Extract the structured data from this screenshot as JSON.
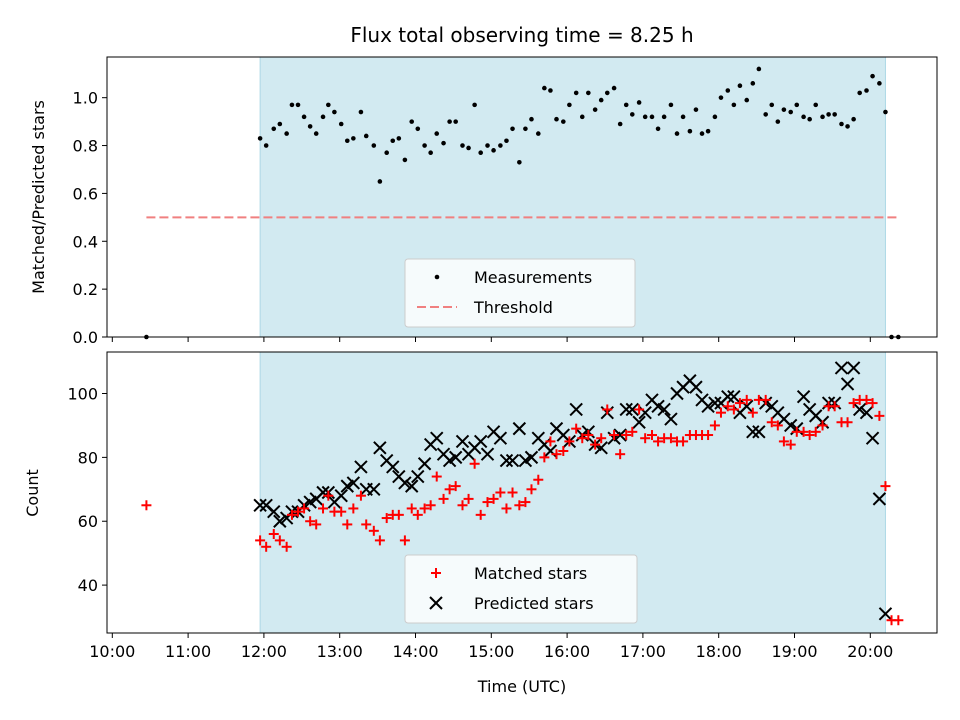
{
  "chart_data": {
    "type": "scatter",
    "title": "Flux total observing time = 8.25 h",
    "x_unit": "hours (UTC)",
    "xlim": [
      9.93,
      20.88
    ],
    "x_ticks": [
      {
        "value": 10,
        "label": "10:00"
      },
      {
        "value": 11,
        "label": "11:00"
      },
      {
        "value": 12,
        "label": "12:00"
      },
      {
        "value": 13,
        "label": "13:00"
      },
      {
        "value": 14,
        "label": "14:00"
      },
      {
        "value": 15,
        "label": "15:00"
      },
      {
        "value": 16,
        "label": "16:00"
      },
      {
        "value": 17,
        "label": "17:00"
      },
      {
        "value": 18,
        "label": "18:00"
      },
      {
        "value": 19,
        "label": "19:00"
      },
      {
        "value": 20,
        "label": "20:00"
      }
    ],
    "xlabel": "Time (UTC)",
    "observing_window": [
      11.95,
      20.2
    ],
    "window_color": "#add8e6",
    "top": {
      "ylabel": "Matched/Predicted stars",
      "ylim": [
        0,
        1.17
      ],
      "y_ticks": [
        {
          "value": 0,
          "label": "0.0"
        },
        {
          "value": 0.2,
          "label": "0.2"
        },
        {
          "value": 0.4,
          "label": "0.4"
        },
        {
          "value": 0.6,
          "label": "0.6"
        },
        {
          "value": 0.8,
          "label": "0.8"
        },
        {
          "value": 1.0,
          "label": "1.0"
        }
      ],
      "threshold": {
        "value": 0.5,
        "x_range": [
          10.45,
          20.38
        ],
        "color": "#f08080"
      },
      "legend": [
        {
          "label": "Measurements",
          "marker": "dot"
        },
        {
          "label": "Threshold",
          "marker": "dash"
        }
      ],
      "measurements": {
        "x": [
          10.45,
          11.95,
          12.03,
          12.13,
          12.21,
          12.3,
          12.37,
          12.45,
          12.53,
          12.61,
          12.69,
          12.78,
          12.85,
          12.93,
          13.02,
          13.1,
          13.18,
          13.28,
          13.35,
          13.45,
          13.53,
          13.62,
          13.7,
          13.78,
          13.86,
          13.95,
          14.03,
          14.12,
          14.2,
          14.28,
          14.37,
          14.45,
          14.53,
          14.62,
          14.7,
          14.78,
          14.86,
          14.95,
          15.03,
          15.12,
          15.2,
          15.28,
          15.37,
          15.45,
          15.53,
          15.62,
          15.7,
          15.78,
          15.86,
          15.95,
          16.03,
          16.12,
          16.2,
          16.28,
          16.37,
          16.45,
          16.53,
          16.62,
          16.7,
          16.78,
          16.86,
          16.95,
          17.03,
          17.12,
          17.2,
          17.28,
          17.37,
          17.45,
          17.53,
          17.62,
          17.7,
          17.78,
          17.86,
          17.95,
          18.03,
          18.12,
          18.2,
          18.28,
          18.37,
          18.45,
          18.53,
          18.62,
          18.7,
          18.78,
          18.86,
          18.95,
          19.03,
          19.12,
          19.2,
          19.28,
          19.37,
          19.45,
          19.53,
          19.62,
          19.7,
          19.78,
          19.86,
          19.95,
          20.03,
          20.12,
          20.2,
          20.28,
          20.37
        ],
        "y": [
          0.0,
          0.83,
          0.8,
          0.87,
          0.89,
          0.85,
          0.97,
          0.97,
          0.92,
          0.88,
          0.85,
          0.92,
          0.97,
          0.94,
          0.89,
          0.82,
          0.83,
          0.94,
          0.84,
          0.8,
          0.65,
          0.77,
          0.82,
          0.83,
          0.74,
          0.9,
          0.87,
          0.8,
          0.77,
          0.85,
          0.81,
          0.9,
          0.9,
          0.8,
          0.79,
          0.97,
          0.77,
          0.8,
          0.78,
          0.8,
          0.82,
          0.87,
          0.73,
          0.87,
          0.91,
          0.85,
          1.04,
          1.03,
          0.91,
          0.9,
          0.97,
          1.02,
          0.92,
          1.02,
          0.95,
          0.99,
          1.02,
          1.04,
          0.89,
          0.97,
          0.93,
          0.98,
          0.92,
          0.92,
          0.87,
          0.92,
          0.97,
          0.85,
          0.92,
          0.86,
          0.95,
          0.85,
          0.86,
          0.92,
          1.0,
          1.03,
          0.97,
          1.05,
          0.99,
          1.06,
          1.12,
          0.93,
          0.97,
          0.9,
          0.95,
          0.94,
          0.97,
          0.92,
          0.91,
          0.97,
          0.92,
          0.93,
          0.93,
          0.89,
          0.88,
          0.91,
          1.02,
          1.03,
          1.09,
          1.06,
          0.94,
          0.0,
          0.0
        ]
      }
    },
    "bottom": {
      "ylabel": "Count",
      "ylim": [
        25,
        113
      ],
      "y_ticks": [
        {
          "value": 40,
          "label": "40"
        },
        {
          "value": 60,
          "label": "60"
        },
        {
          "value": 80,
          "label": "80"
        },
        {
          "value": 100,
          "label": "100"
        }
      ],
      "legend": [
        {
          "label": "Matched stars",
          "marker": "plus"
        },
        {
          "label": "Predicted stars",
          "marker": "x"
        }
      ],
      "series": [
        {
          "name": "Matched stars",
          "color": "#ff0000",
          "x": [
            10.45,
            11.95,
            12.03,
            12.13,
            12.21,
            12.3,
            12.37,
            12.45,
            12.53,
            12.61,
            12.69,
            12.78,
            12.85,
            12.93,
            13.02,
            13.1,
            13.18,
            13.28,
            13.35,
            13.45,
            13.53,
            13.62,
            13.7,
            13.78,
            13.86,
            13.95,
            14.03,
            14.12,
            14.2,
            14.28,
            14.37,
            14.45,
            14.53,
            14.62,
            14.7,
            14.78,
            14.86,
            14.95,
            15.03,
            15.12,
            15.2,
            15.28,
            15.37,
            15.45,
            15.53,
            15.62,
            15.7,
            15.78,
            15.86,
            15.95,
            16.03,
            16.12,
            16.2,
            16.28,
            16.37,
            16.45,
            16.53,
            16.62,
            16.7,
            16.78,
            16.86,
            16.95,
            17.03,
            17.12,
            17.2,
            17.28,
            17.37,
            17.45,
            17.53,
            17.62,
            17.7,
            17.78,
            17.86,
            17.95,
            18.03,
            18.12,
            18.2,
            18.28,
            18.37,
            18.45,
            18.53,
            18.62,
            18.7,
            18.78,
            18.86,
            18.95,
            19.03,
            19.12,
            19.2,
            19.28,
            19.37,
            19.45,
            19.53,
            19.62,
            19.7,
            19.78,
            19.86,
            19.95,
            20.03,
            20.12,
            20.2,
            20.28,
            20.37
          ],
          "y": [
            65,
            54,
            52,
            56,
            54,
            52,
            62,
            63,
            64,
            60,
            59,
            64,
            68,
            63,
            63,
            59,
            64,
            68,
            59,
            57,
            54,
            61,
            62,
            62,
            54,
            64,
            62,
            64,
            65,
            74,
            67,
            70,
            71,
            65,
            67,
            78,
            62,
            66,
            67,
            69,
            64,
            69,
            65,
            66,
            70,
            73,
            80,
            85,
            81,
            82,
            85,
            89,
            86,
            87,
            84,
            86,
            95,
            87,
            81,
            87,
            88,
            95,
            86,
            87,
            85,
            86,
            86,
            85,
            85,
            87,
            87,
            87,
            87,
            90,
            94,
            96,
            95,
            97,
            98,
            94,
            98,
            98,
            91,
            90,
            85,
            84,
            88,
            88,
            87,
            88,
            90,
            96,
            96,
            91,
            91,
            97,
            98,
            98,
            97,
            93,
            71,
            29,
            29
          ]
        },
        {
          "name": "Predicted stars",
          "color": "#000000",
          "x": [
            11.95,
            12.03,
            12.13,
            12.21,
            12.3,
            12.37,
            12.45,
            12.53,
            12.61,
            12.69,
            12.78,
            12.85,
            12.93,
            13.02,
            13.1,
            13.18,
            13.28,
            13.35,
            13.45,
            13.53,
            13.62,
            13.7,
            13.78,
            13.86,
            13.95,
            14.03,
            14.12,
            14.2,
            14.28,
            14.37,
            14.45,
            14.53,
            14.62,
            14.7,
            14.78,
            14.86,
            14.95,
            15.03,
            15.12,
            15.2,
            15.28,
            15.37,
            15.45,
            15.53,
            15.62,
            15.7,
            15.78,
            15.86,
            15.95,
            16.03,
            16.12,
            16.2,
            16.28,
            16.37,
            16.45,
            16.53,
            16.62,
            16.7,
            16.78,
            16.86,
            16.95,
            17.03,
            17.12,
            17.2,
            17.28,
            17.37,
            17.45,
            17.53,
            17.62,
            17.7,
            17.78,
            17.86,
            17.95,
            18.03,
            18.12,
            18.2,
            18.28,
            18.37,
            18.45,
            18.53,
            18.62,
            18.7,
            18.78,
            18.86,
            18.95,
            19.03,
            19.12,
            19.2,
            19.28,
            19.37,
            19.45,
            19.53,
            19.62,
            19.7,
            19.78,
            19.86,
            19.95,
            20.03,
            20.12,
            20.2
          ],
          "y": [
            65,
            65,
            63,
            60,
            61,
            63,
            63,
            65,
            66,
            67,
            69,
            69,
            66,
            68,
            71,
            72,
            77,
            70,
            70,
            83,
            79,
            77,
            74,
            72,
            71,
            74,
            78,
            84,
            86,
            81,
            79,
            80,
            85,
            81,
            83,
            85,
            81,
            88,
            86,
            79,
            79,
            89,
            79,
            80,
            86,
            84,
            82,
            89,
            87,
            85,
            95,
            87,
            88,
            84,
            83,
            94,
            86,
            87,
            95,
            95,
            91,
            94,
            98,
            96,
            95,
            92,
            100,
            102,
            104,
            102,
            98,
            96,
            97,
            97,
            99,
            99,
            94,
            96,
            88,
            88,
            97,
            96,
            94,
            92,
            90,
            89,
            99,
            95,
            93,
            91,
            97,
            97,
            108,
            103,
            108,
            95,
            94,
            86,
            67,
            31
          ]
        }
      ]
    }
  }
}
